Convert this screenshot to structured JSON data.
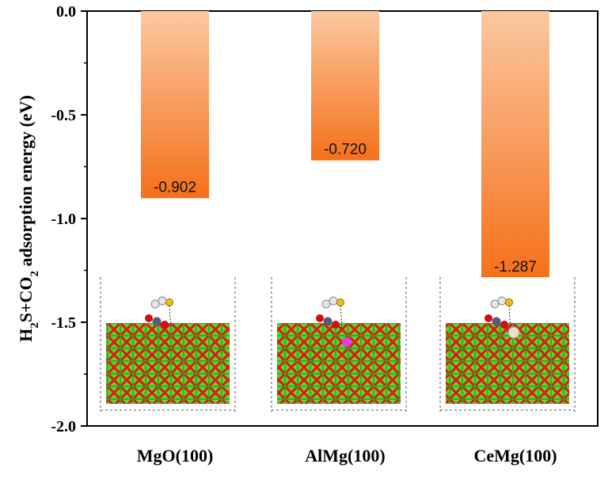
{
  "chart_data": {
    "type": "bar",
    "categories": [
      "MgO(100)",
      "AlMg(100)",
      "CeMg(100)"
    ],
    "values": [
      -0.902,
      -0.72,
      -1.287
    ],
    "data_labels": [
      "-0.902",
      "-0.720",
      "-1.287"
    ],
    "ylabel": {
      "parts": [
        {
          "text": "H",
          "sub": false
        },
        {
          "text": "2",
          "sub": true
        },
        {
          "text": "S+CO",
          "sub": false
        },
        {
          "text": "2",
          "sub": true
        },
        {
          "text": " adsorption energy (eV)",
          "sub": false
        }
      ]
    },
    "ylim": [
      -2.0,
      0.0
    ],
    "yticks": [
      0.0,
      -0.5,
      -1.0,
      -1.5,
      -2.0
    ],
    "ytick_labels": [
      "0.0",
      "-0.5",
      "-1.0",
      "-1.5",
      "-2.0"
    ],
    "grid": false,
    "bar_gradient": {
      "top": "#FBC8A0",
      "bottom": "#F5701A"
    },
    "inset_images": "atomic slab structure snapshots (MgO, AlMg, CeMg surfaces with adsorbed H2S and CO2)"
  }
}
